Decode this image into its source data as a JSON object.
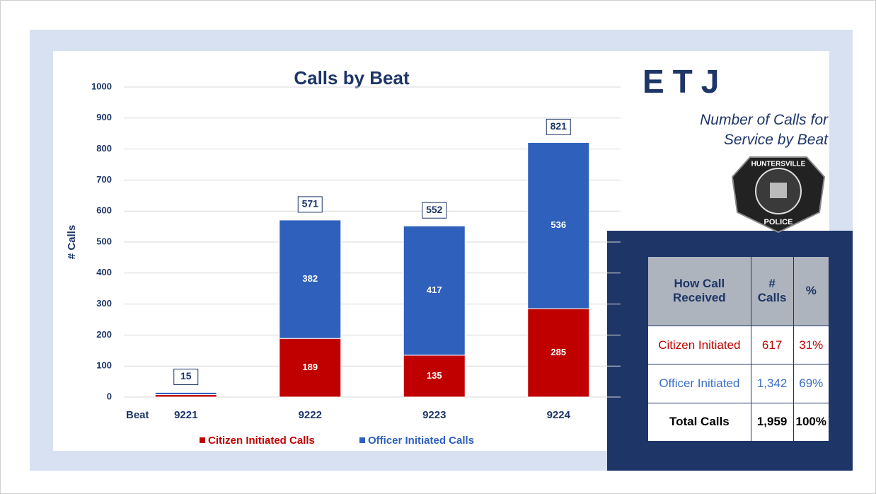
{
  "chart_data": {
    "type": "stacked_bar",
    "title": "Calls by Beat",
    "y_label": "# Calls",
    "x_label": "Beat",
    "categories": [
      "9221",
      "9222",
      "9223",
      "9224"
    ],
    "series": [
      {
        "name": "Citizen Initiated Calls",
        "color": "#c00000",
        "values": [
          8,
          189,
          135,
          285
        ],
        "value_labels": [
          null,
          189,
          135,
          285
        ]
      },
      {
        "name": "Officer Initiated Calls",
        "color": "#2f60bc",
        "values": [
          7,
          382,
          417,
          536
        ],
        "value_labels": [
          null,
          382,
          417,
          536
        ]
      }
    ],
    "totals": [
      15,
      571,
      552,
      821
    ],
    "ylim": [
      0,
      1000
    ],
    "yticks": [
      0,
      100,
      200,
      300,
      400,
      500,
      600,
      700,
      800,
      900,
      1000
    ],
    "grid": true
  },
  "header": {
    "title": "ETJ",
    "subtitle": [
      "Number of Calls for",
      "Service by Beat"
    ]
  },
  "badge": {
    "top": "HUNTERSVILLE",
    "bottom": "POLICE"
  },
  "table": {
    "header": [
      "How Call Received",
      "# Calls",
      "%"
    ],
    "rows": [
      [
        "Citizen Initiated",
        "617",
        "31%"
      ],
      [
        "Officer Initiated",
        "1,342",
        "69%"
      ],
      [
        "Total Calls",
        "1,959",
        "100%"
      ]
    ]
  }
}
